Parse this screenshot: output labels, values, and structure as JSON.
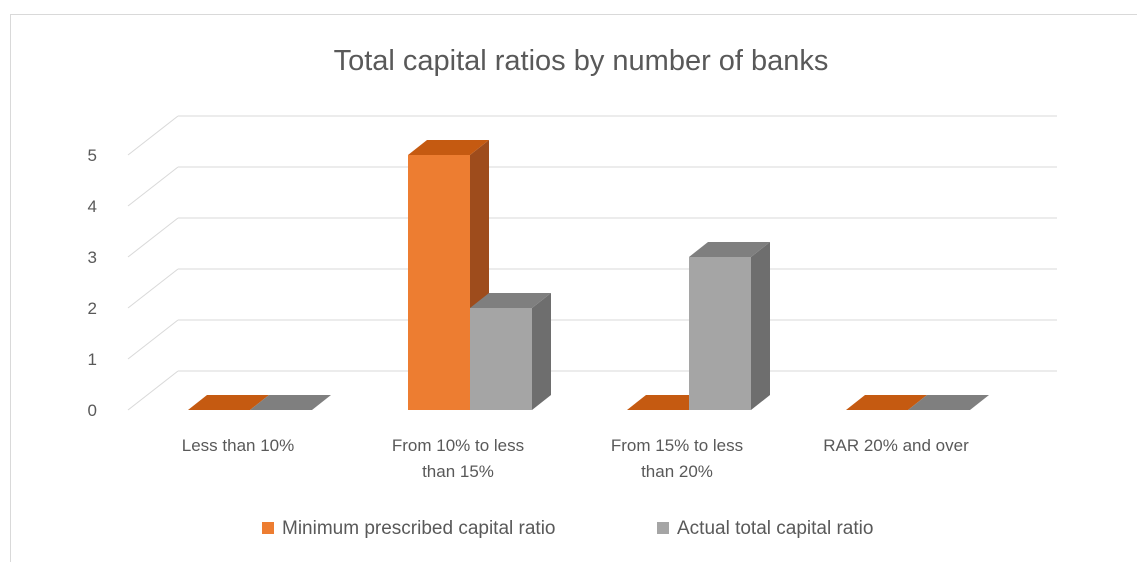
{
  "chart_data": {
    "type": "bar",
    "title": "Total capital ratios by number of banks",
    "xlabel": "",
    "ylabel": "",
    "categories": [
      [
        "Less than 10%"
      ],
      [
        "From 10% to less",
        "than 15%"
      ],
      [
        "From 15% to less",
        "than 20%"
      ],
      [
        "RAR 20% and over"
      ]
    ],
    "series": [
      {
        "name": "Minimum prescribed capital ratio",
        "values": [
          0,
          5,
          0,
          0
        ],
        "color": "#ed7d31",
        "top_color": "#c55a11",
        "side_color": "#9e4c1c"
      },
      {
        "name": "Actual total capital ratio",
        "values": [
          0,
          2,
          3,
          0
        ],
        "color": "#a5a5a5",
        "top_color": "#7f7f7f",
        "side_color": "#6e6e6e"
      }
    ],
    "yticks": [
      "0",
      "1",
      "2",
      "3",
      "4",
      "5"
    ],
    "ylim": [
      0,
      5
    ],
    "grid": true,
    "legend_position": "bottom",
    "style": "3d-clustered-column"
  }
}
